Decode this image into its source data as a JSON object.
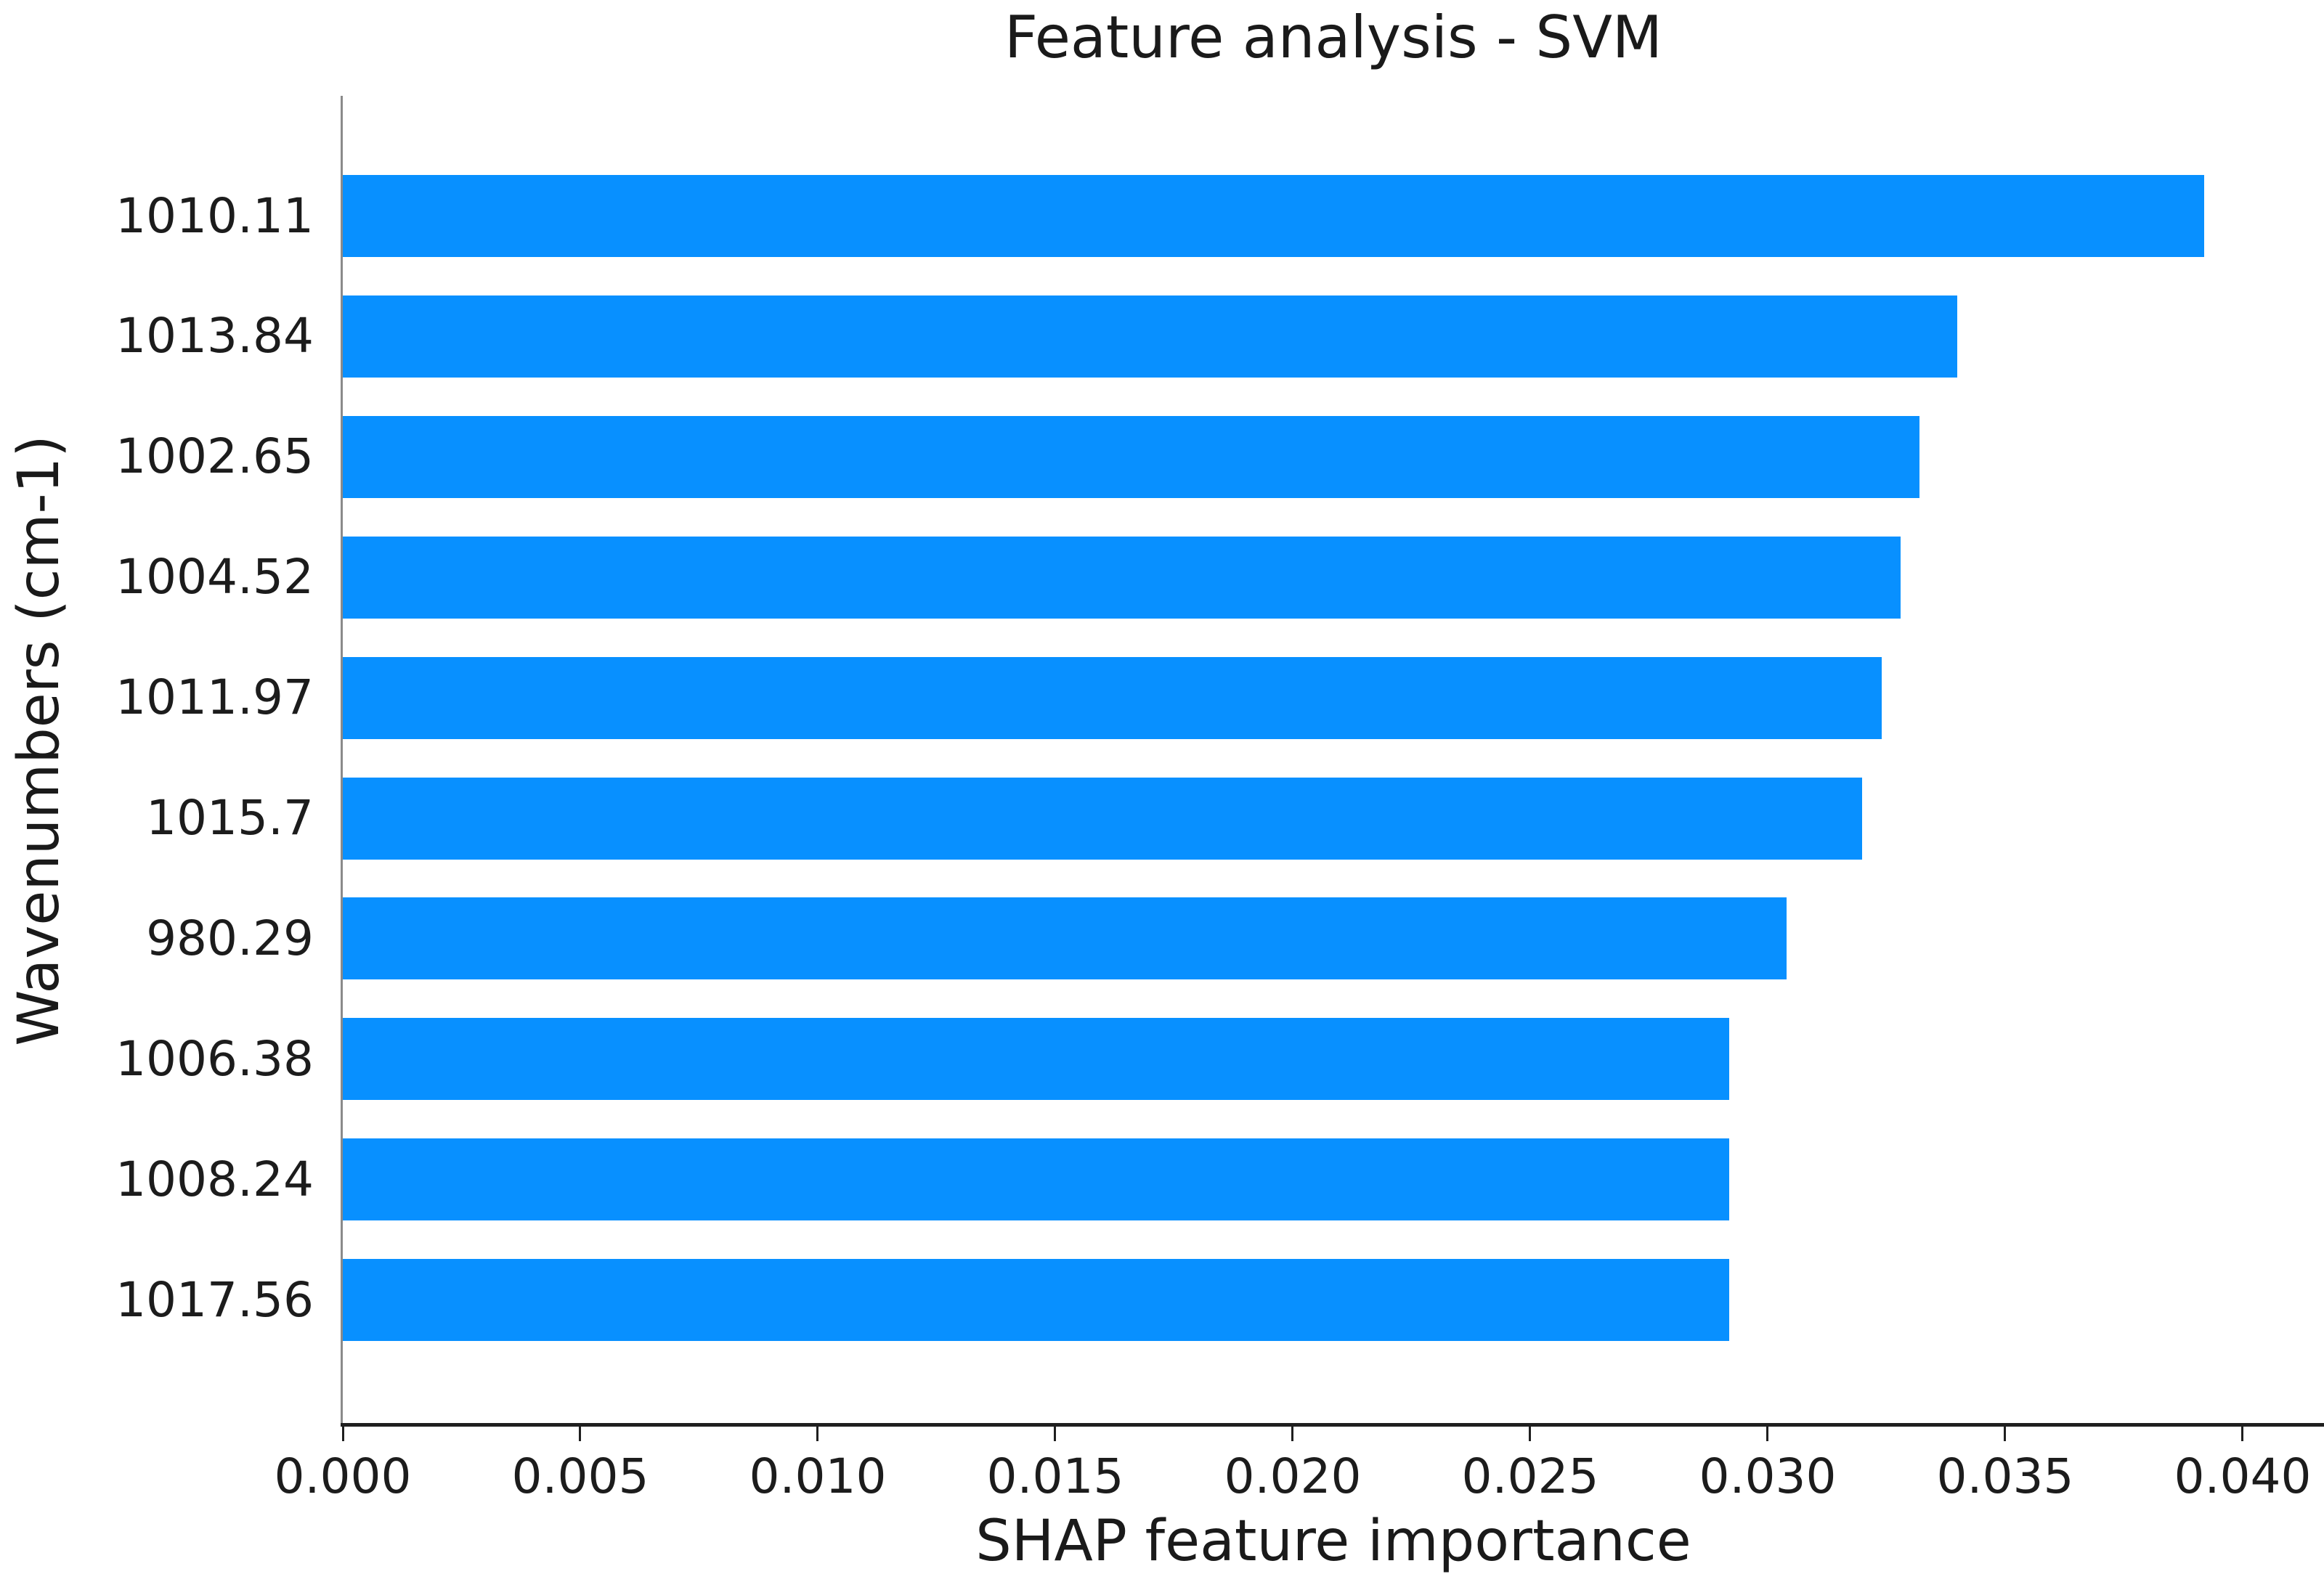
{
  "chart_data": {
    "type": "bar",
    "orientation": "horizontal",
    "title": "Feature analysis - SVM",
    "xlabel": "SHAP feature importance",
    "ylabel": "Wavenumbers (cm-1)",
    "categories": [
      "1010.11",
      "1013.84",
      "1002.65",
      "1004.52",
      "1011.97",
      "1015.7",
      "980.29",
      "1006.38",
      "1008.24",
      "1017.56"
    ],
    "values": [
      0.0392,
      0.034,
      0.0332,
      0.0328,
      0.0324,
      0.032,
      0.0304,
      0.0292,
      0.0292,
      0.0292
    ],
    "x_ticks": [
      "0.000",
      "0.005",
      "0.010",
      "0.015",
      "0.020",
      "0.025",
      "0.030",
      "0.035",
      "0.040"
    ],
    "x_tick_values": [
      0.0,
      0.005,
      0.01,
      0.015,
      0.02,
      0.025,
      0.03,
      0.035,
      0.04
    ],
    "xlim": [
      0,
      0.04172
    ],
    "grid": false,
    "legend": "none",
    "bar_color": "#0890ff",
    "text_color": "#1c1c1c",
    "left_spine_color": "#8a8a8a",
    "bottom_spine_color": "#1f1f1f"
  }
}
